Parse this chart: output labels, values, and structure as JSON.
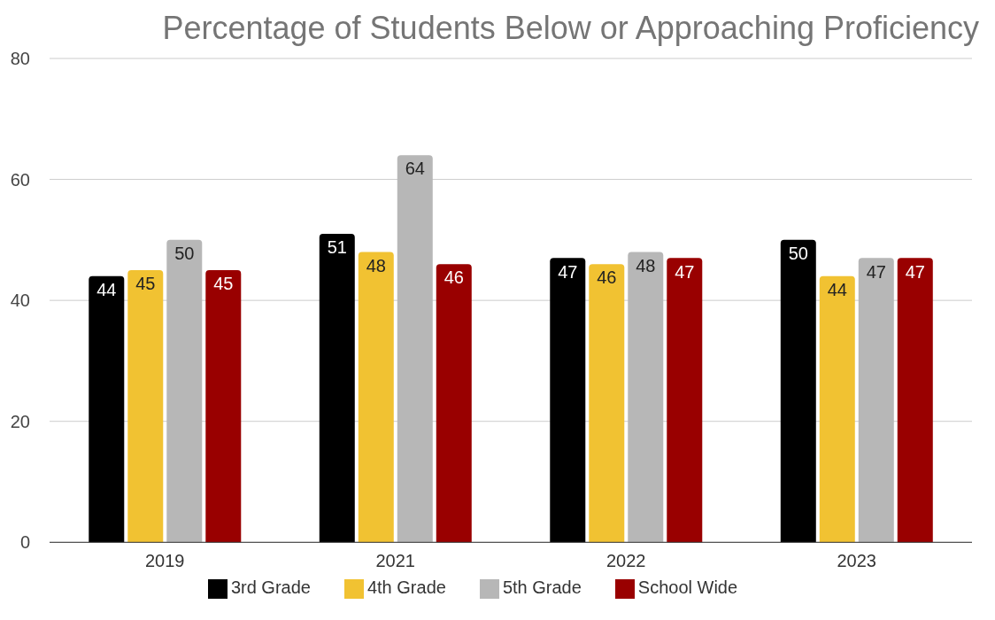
{
  "chart_data": {
    "type": "bar",
    "title": "Percentage of Students Below or Approaching Proficiency",
    "categories": [
      "2019",
      "2021",
      "2022",
      "2023"
    ],
    "series": [
      {
        "name": "3rd Grade",
        "color": "#000000",
        "values": [
          44,
          51,
          47,
          50
        ]
      },
      {
        "name": "4th Grade",
        "color": "#f1c232",
        "values": [
          45,
          48,
          46,
          44
        ]
      },
      {
        "name": "5th Grade",
        "color": "#b7b7b7",
        "values": [
          50,
          64,
          48,
          47
        ]
      },
      {
        "name": "School Wide",
        "color": "#990000",
        "values": [
          45,
          46,
          47,
          47
        ]
      }
    ],
    "ylim": [
      0,
      80
    ],
    "yticks": [
      0,
      20,
      40,
      60,
      80
    ],
    "grid": "y",
    "legend": "bottom",
    "data_labels": true
  }
}
